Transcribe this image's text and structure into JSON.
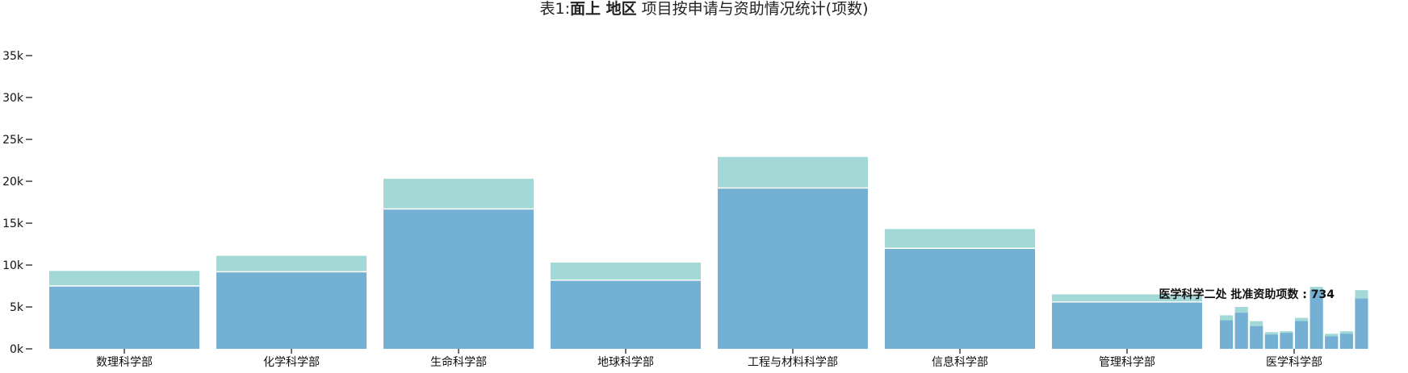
{
  "title": {
    "prefix": "表1:",
    "bold_part": "面上 地区",
    "suffix": " 项目按申请与资助情况统计(项数)"
  },
  "colors": {
    "applied": "#a2d9d6",
    "funded": "#74afd4"
  },
  "chart_data": {
    "type": "bar",
    "stacked_overlay": true,
    "categories": [
      "数理科学部",
      "化学科学部",
      "生命科学部",
      "地球科学部",
      "工程与材料科学部",
      "信息科学部",
      "管理科学部",
      "医学科学部"
    ],
    "series": [
      {
        "key": "applied",
        "values": [
          9300,
          11100,
          20300,
          10300,
          22900,
          14300,
          6500,
          null
        ]
      },
      {
        "key": "funded",
        "values": [
          7500,
          9200,
          16700,
          8200,
          19200,
          12000,
          5600,
          null
        ]
      }
    ],
    "sub_bars": {
      "category": "医学科学部",
      "applied": [
        4000,
        5000,
        3300,
        2000,
        2100,
        3700,
        7400,
        1800,
        2100,
        7000
      ],
      "funded": [
        3400,
        4300,
        2700,
        1700,
        1900,
        3300,
        7000,
        1500,
        1800,
        6000
      ]
    },
    "annotation": "医学科学二处 批准资助项数 : 734",
    "y_ticks": [
      "0k",
      "5k",
      "10k",
      "15k",
      "20k",
      "25k",
      "30k",
      "35k"
    ],
    "ylim": [
      0,
      35000
    ],
    "grid": false
  }
}
